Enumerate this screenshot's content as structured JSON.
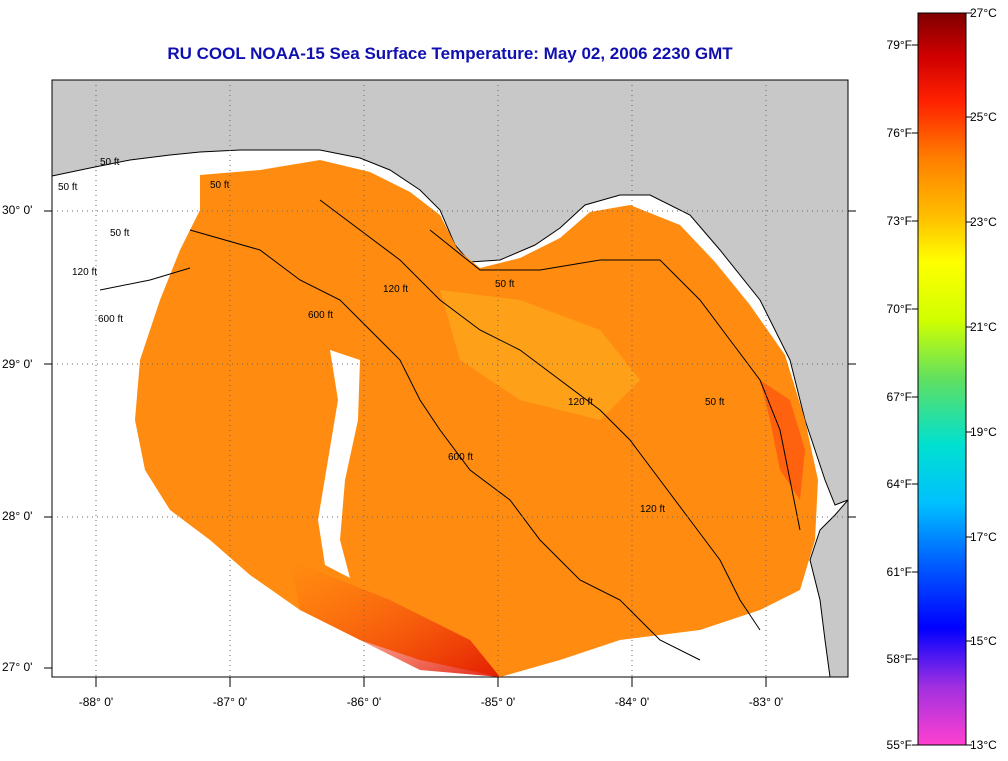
{
  "title": "RU COOL  NOAA-15  Sea Surface Temperature:  May 02, 2006 2230 GMT",
  "axes": {
    "lat_labels": [
      "30° 0'",
      "29° 0'",
      "28° 0'",
      "27° 0'"
    ],
    "lon_labels": [
      "-88° 0'",
      "-87° 0'",
      "-86° 0'",
      "-85° 0'",
      "-84° 0'",
      "-83° 0'"
    ]
  },
  "contours": [
    "50 ft",
    "50 ft",
    "50 ft",
    "50 ft",
    "50 ft",
    "120 ft",
    "120 ft",
    "600 ft",
    "600 ft",
    "600 ft",
    "120 ft",
    "50 ft",
    "120 ft"
  ],
  "colorbar": {
    "fahrenheit": [
      "79°F",
      "76°F",
      "73°F",
      "70°F",
      "67°F",
      "64°F",
      "61°F",
      "58°F",
      "55°F"
    ],
    "celsius": [
      "27°C",
      "25°C",
      "23°C",
      "21°C",
      "19°C",
      "17°C",
      "15°C",
      "13°C"
    ],
    "gradient_colors": [
      "#ff40d0",
      "#a030e0",
      "#0000ff",
      "#00a0ff",
      "#00e0e0",
      "#40e080",
      "#c0ff00",
      "#ffff00",
      "#ffc000",
      "#ff8000",
      "#ff2000",
      "#e00000",
      "#800000"
    ]
  },
  "colors": {
    "land": "#c8c8c8",
    "title": "#1010b0",
    "sst_main": "#ff8c10"
  }
}
